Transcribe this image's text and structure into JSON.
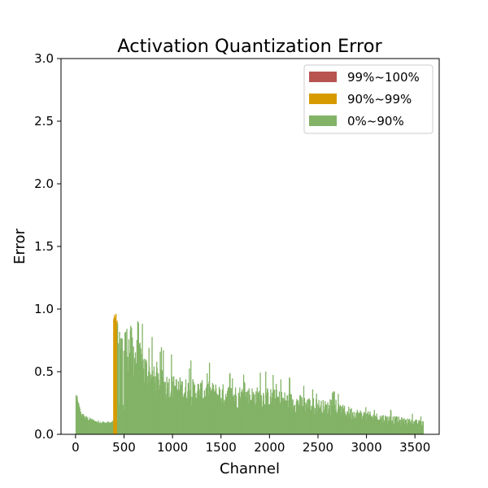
{
  "chart_data": {
    "type": "bar",
    "title": "Activation Quantization Error",
    "xlabel": "Channel",
    "ylabel": "Error",
    "xlim": [
      -150,
      3750
    ],
    "ylim": [
      0,
      3.0
    ],
    "xticks": [
      0,
      500,
      1000,
      1500,
      2000,
      2500,
      3000,
      3500
    ],
    "yticks": [
      0.0,
      0.5,
      1.0,
      1.5,
      2.0,
      2.5,
      3.0
    ],
    "xtick_labels": [
      "0",
      "500",
      "1000",
      "1500",
      "2000",
      "2500",
      "3000",
      "3500"
    ],
    "ytick_labels": [
      "0.0",
      "0.5",
      "1.0",
      "1.5",
      "2.0",
      "2.5",
      "3.0"
    ],
    "grid": false,
    "legend_position": "upper right",
    "n_channels": 3584,
    "series": [
      {
        "name": "99%~100%",
        "color": "#b85450"
      },
      {
        "name": "90%~99%",
        "color": "#d79b00"
      },
      {
        "name": "0%~90%",
        "color": "#82b366"
      }
    ],
    "profile": [
      {
        "channel": 0,
        "value": 0.3
      },
      {
        "channel": 50,
        "value": 0.16
      },
      {
        "channel": 100,
        "value": 0.13
      },
      {
        "channel": 200,
        "value": 0.1
      },
      {
        "channel": 300,
        "value": 0.09
      },
      {
        "channel": 370,
        "value": 0.09
      },
      {
        "channel": 385,
        "value": 0.1
      },
      {
        "channel": 390,
        "value": 0.85
      },
      {
        "channel": 420,
        "value": 0.9
      },
      {
        "channel": 500,
        "value": 0.82
      },
      {
        "channel": 560,
        "value": 0.8
      },
      {
        "channel": 650,
        "value": 0.68
      },
      {
        "channel": 800,
        "value": 0.5
      },
      {
        "channel": 1000,
        "value": 0.43
      },
      {
        "channel": 1500,
        "value": 0.37
      },
      {
        "channel": 2000,
        "value": 0.34
      },
      {
        "channel": 2500,
        "value": 0.26
      },
      {
        "channel": 3000,
        "value": 0.17
      },
      {
        "channel": 3400,
        "value": 0.12
      },
      {
        "channel": 3583,
        "value": 0.1
      }
    ],
    "peak_range_90_99": [
      385,
      425
    ],
    "peak_max": 0.97,
    "dip_range": [
      430,
      510
    ],
    "dip_value": 0.22
  }
}
